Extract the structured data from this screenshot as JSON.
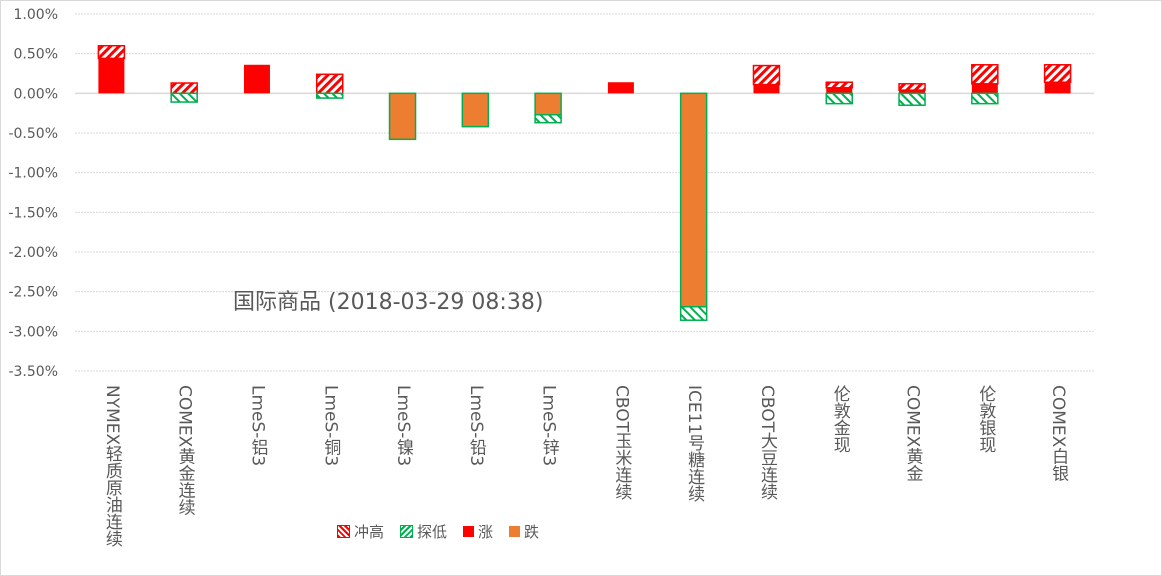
{
  "chart_data": {
    "type": "bar",
    "title": "国际商品 (2018-03-29 08:38)",
    "xlabel": "",
    "ylabel": "",
    "ylim": [
      -3.5,
      1.0
    ],
    "yticks": [
      "1.00%",
      "0.50%",
      "0.00%",
      "-0.50%",
      "-1.00%",
      "-1.50%",
      "-2.00%",
      "-2.50%",
      "-3.00%",
      "-3.50%"
    ],
    "ytick_values": [
      1.0,
      0.5,
      0.0,
      -0.5,
      -1.0,
      -1.5,
      -2.0,
      -2.5,
      -3.0,
      -3.5
    ],
    "grid": true,
    "legend_position": "bottom",
    "categories": [
      "NYMEX轻质原油连续",
      "COMEX黄金连续",
      "LmeS-铝3",
      "LmeS-铜3",
      "LmeS-镍3",
      "LmeS-铅3",
      "LmeS-锌3",
      "CBOT玉米连续",
      "ICE11号糖连续",
      "CBOT大豆连续",
      "伦敦金现",
      "COMEX黄金",
      "伦敦银现",
      "COMEX白银"
    ],
    "series": [
      {
        "name": "冲高",
        "color": "#ff0000",
        "pattern": "hatch",
        "values": [
          0.6,
          0.13,
          0.36,
          0.24,
          0.0,
          0.0,
          0.0,
          0.14,
          0.0,
          0.35,
          0.14,
          0.12,
          0.36,
          0.36
        ]
      },
      {
        "name": "探低",
        "color": "#00b050",
        "pattern": "hatch",
        "values": [
          0.0,
          -0.11,
          0.0,
          -0.06,
          -0.58,
          -0.42,
          -0.37,
          0.0,
          -2.86,
          0.0,
          -0.13,
          -0.15,
          -0.13,
          0.0
        ]
      },
      {
        "name": "涨",
        "color": "#ff0000",
        "pattern": "solid",
        "values": [
          0.44,
          0.0,
          0.36,
          0.0,
          0.0,
          0.0,
          0.0,
          0.14,
          0.0,
          0.11,
          0.07,
          0.04,
          0.12,
          0.14
        ]
      },
      {
        "name": "跌",
        "color": "#ed7d31",
        "pattern": "solid",
        "values": [
          0.0,
          0.0,
          0.0,
          0.0,
          -0.58,
          -0.42,
          -0.27,
          0.0,
          -2.69,
          0.0,
          0.0,
          0.0,
          0.0,
          0.0
        ]
      }
    ]
  }
}
